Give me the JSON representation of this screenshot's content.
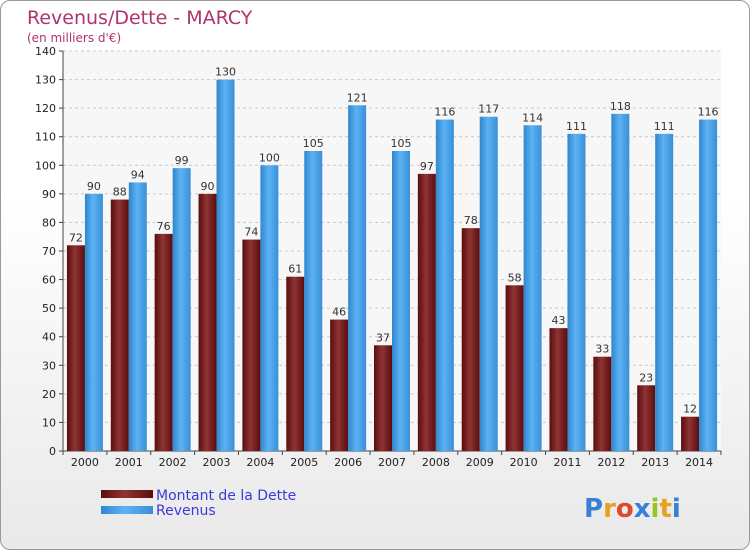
{
  "chart_data": {
    "type": "bar",
    "title": "Revenus/Dette - MARCY",
    "subtitle": "(en milliers d'€)",
    "categories": [
      "2000",
      "2001",
      "2002",
      "2003",
      "2004",
      "2005",
      "2006",
      "2007",
      "2008",
      "2009",
      "2010",
      "2011",
      "2012",
      "2013",
      "2014"
    ],
    "series": [
      {
        "name": "Montant de la Dette",
        "color": "#8a2a2a",
        "values": [
          72,
          88,
          76,
          90,
          74,
          61,
          46,
          37,
          97,
          78,
          58,
          43,
          33,
          23,
          12
        ]
      },
      {
        "name": "Revenus",
        "color": "#4aa3e8",
        "values": [
          90,
          94,
          99,
          130,
          100,
          105,
          121,
          105,
          116,
          117,
          114,
          111,
          118,
          111,
          116
        ]
      }
    ],
    "ylim": [
      0,
      140
    ],
    "yticks": [
      0,
      10,
      20,
      30,
      40,
      50,
      60,
      70,
      80,
      90,
      100,
      110,
      120,
      130,
      140
    ],
    "grid": true,
    "legend_position": "bottom-left"
  },
  "logo": {
    "text": "Proxiti"
  }
}
